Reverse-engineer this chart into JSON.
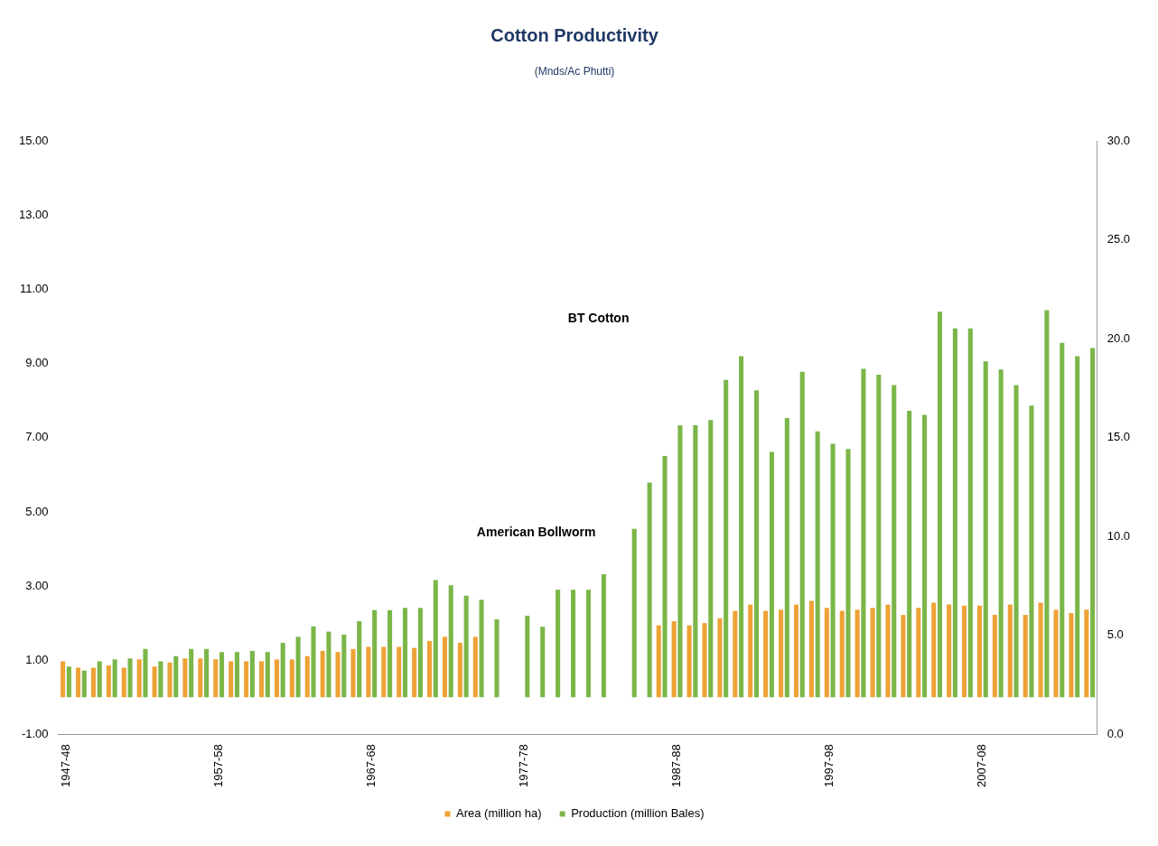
{
  "chart_data": {
    "type": "bar",
    "title": "Cotton Productivity",
    "subtitle": "(Mnds/Ac Phutti)",
    "categories": [
      "1947-48",
      null,
      null,
      null,
      null,
      null,
      null,
      null,
      null,
      null,
      "1957-58",
      null,
      null,
      null,
      null,
      null,
      null,
      null,
      null,
      null,
      "1967-68",
      null,
      null,
      null,
      null,
      null,
      null,
      null,
      null,
      null,
      "1977-78",
      null,
      null,
      null,
      null,
      null,
      null,
      null,
      null,
      null,
      "1987-88",
      null,
      null,
      null,
      null,
      null,
      null,
      null,
      null,
      null,
      "1997-98",
      null,
      null,
      null,
      null,
      null,
      null,
      null,
      null,
      null,
      "2007-08",
      null,
      null,
      null,
      null,
      null,
      null,
      null
    ],
    "series": [
      {
        "name": "Area (million ha)",
        "color": "#eea236",
        "values": [
          0.97,
          0.8,
          0.8,
          0.86,
          0.8,
          1.02,
          0.83,
          0.94,
          1.05,
          1.05,
          1.02,
          0.97,
          0.97,
          0.97,
          1.02,
          1.02,
          1.11,
          1.25,
          1.22,
          1.3,
          1.36,
          1.36,
          1.36,
          1.33,
          1.52,
          1.63,
          1.47,
          1.63,
          null,
          null,
          null,
          null,
          null,
          null,
          null,
          null,
          null,
          null,
          null,
          1.94,
          2.05,
          1.94,
          2.0,
          2.13,
          2.33,
          2.5,
          2.33,
          2.36,
          2.5,
          2.6,
          2.41,
          2.33,
          2.36,
          2.41,
          2.5,
          2.22,
          2.41,
          2.55,
          2.5,
          2.47,
          2.47,
          2.22,
          2.5,
          2.22,
          2.55,
          2.36,
          2.27,
          2.36
        ]
      },
      {
        "name": "Production (million Bales)",
        "color": "#7ab648",
        "values": [
          0.83,
          0.72,
          0.97,
          1.02,
          1.05,
          1.3,
          0.97,
          1.11,
          1.3,
          1.3,
          1.22,
          1.22,
          1.25,
          1.22,
          1.47,
          1.63,
          1.91,
          1.77,
          1.69,
          2.05,
          2.35,
          2.35,
          2.41,
          2.41,
          3.16,
          3.02,
          2.74,
          2.63,
          2.1,
          null,
          2.2,
          1.9,
          2.9,
          2.9,
          2.9,
          3.32,
          null,
          4.54,
          5.79,
          6.51,
          7.34,
          7.34,
          7.48,
          8.56,
          9.2,
          8.28,
          6.62,
          7.53,
          8.78,
          7.17,
          6.84,
          6.7,
          8.86,
          8.7,
          8.42,
          7.73,
          7.62,
          10.4,
          9.95,
          9.95,
          9.06,
          8.84,
          8.42,
          7.87,
          10.44,
          9.56,
          9.2,
          9.42
        ]
      }
    ],
    "ylim": [
      -1,
      15
    ],
    "yticks": [
      {
        "value": -1,
        "label": "-1.00"
      },
      {
        "value": 1,
        "label": "1.00"
      },
      {
        "value": 3,
        "label": "3.00"
      },
      {
        "value": 5,
        "label": "5.00"
      },
      {
        "value": 7,
        "label": "7.00"
      },
      {
        "value": 9,
        "label": "9.00"
      },
      {
        "value": 11,
        "label": "11.00"
      },
      {
        "value": 13,
        "label": "13.00"
      },
      {
        "value": 15,
        "label": "15.00"
      }
    ],
    "y2lim": [
      0,
      30
    ],
    "y2ticks": [
      {
        "value": 0,
        "label": "0.0"
      },
      {
        "value": 5,
        "label": "5.0"
      },
      {
        "value": 10,
        "label": "10.0"
      },
      {
        "value": 15,
        "label": "15.0"
      },
      {
        "value": 20,
        "label": "20.0"
      },
      {
        "value": 25,
        "label": "25.0"
      },
      {
        "value": 30,
        "label": "30.0"
      }
    ],
    "annotations": [
      "BT Cotton",
      "American Bollworm"
    ],
    "legend": "bottom",
    "grid": false
  }
}
